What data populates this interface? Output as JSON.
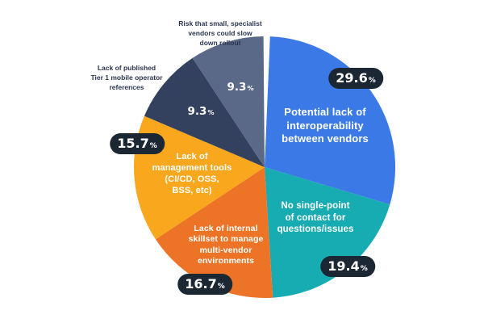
{
  "chart_data": {
    "type": "pie",
    "title": "",
    "unit": "%",
    "direction": "clockwise",
    "start_angle_deg": 0,
    "legend": "none",
    "background": "#ffffff",
    "segments": [
      {
        "id": "interoperability",
        "label": "Potential lack of interoperability between vendors",
        "value": 29.6,
        "color": "#3b7ae6",
        "label_placement": "inside",
        "value_label_style": "dark-badge"
      },
      {
        "id": "single_point",
        "label": "No single-point of contact for questions/issues",
        "value": 19.4,
        "color": "#17abb2",
        "label_placement": "inside",
        "value_label_style": "dark-badge"
      },
      {
        "id": "skillset",
        "label": "Lack of internal skillset to manage multi-vendor environments",
        "value": 16.7,
        "color": "#ed7426",
        "label_placement": "inside",
        "value_label_style": "dark-badge"
      },
      {
        "id": "management_tools",
        "label": "Lack of management tools (CI/CD, OSS, BSS, etc)",
        "value": 15.7,
        "color": "#f9a71d",
        "label_placement": "inside",
        "value_label_style": "dark-badge"
      },
      {
        "id": "references",
        "label": "Lack of published Tier 1 mobile operator references",
        "value": 9.3,
        "color": "#33415f",
        "label_placement": "outside",
        "value_label_style": "white-on-slice"
      },
      {
        "id": "rollout_risk",
        "label": "Risk that small, specialist vendors could slow down rollout",
        "value": 9.3,
        "color": "#5a6987",
        "label_placement": "outside",
        "value_label_style": "white-on-slice"
      }
    ]
  },
  "display": {
    "slice_labels": {
      "interoperability": "Potential lack of\ninteroperability\nbetween vendors",
      "single_point": "No single-point\nof contact for\nquestions/issues",
      "skillset": "Lack of internal\nskillset to manage\nmulti-vendor\nenvironments",
      "management_tools": "Lack of\nmanagement tools\n(CI/CD, OSS,\nBSS, etc)"
    },
    "external_labels": {
      "rollout_risk": "Risk that small, specialist\nvendors could slow\ndown rollout",
      "references": "Lack of published\nTier 1 mobile operator\nreferences"
    },
    "value_labels": {
      "interoperability": {
        "num": "29.6",
        "sym": "%"
      },
      "single_point": {
        "num": "19.4",
        "sym": "%"
      },
      "skillset": {
        "num": "16.7",
        "sym": "%"
      },
      "management_tools": {
        "num": "15.7",
        "sym": "%"
      },
      "references": {
        "num": "9.3",
        "sym": "%"
      },
      "rollout_risk": {
        "num": "9.3",
        "sym": "%"
      }
    },
    "colors": {
      "badge_bg": "#1c2734",
      "badge_text": "#ffffff",
      "external_text": "#2b3550",
      "background": "#ffffff"
    }
  }
}
